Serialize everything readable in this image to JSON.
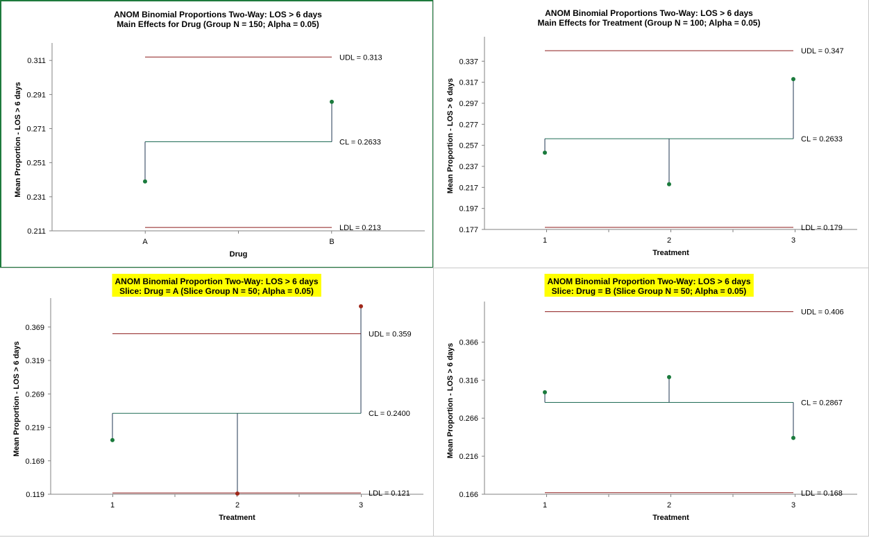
{
  "colors": {
    "limit_line": "#8b1a1a",
    "center_line": "#1e6b55",
    "drop_line": "#1f3550",
    "point_in": "#1a7a3c",
    "point_out": "#a0281a",
    "highlight": "#ffff00",
    "axis": "#808080"
  },
  "chart_data": [
    {
      "type": "anom",
      "title": "ANOM Binomial Proportions Two-Way: LOS > 6 days",
      "subtitle": "Main Effects for Drug (Group N = 150; Alpha = 0.05)",
      "highlight_title": false,
      "xlabel": "Drug",
      "ylabel": "Mean Proportion - LOS > 6 days",
      "categories": [
        "A",
        "B"
      ],
      "values": [
        0.24,
        0.2867
      ],
      "ylim": [
        0.211,
        0.318
      ],
      "yticks": [
        "0.211",
        "0.231",
        "0.251",
        "0.271",
        "0.291",
        "0.311"
      ],
      "udl": 0.313,
      "udl_label": "UDL = 0.313",
      "cl": 0.2633,
      "cl_label": "CL = 0.2633",
      "ldl": 0.213,
      "ldl_label": "LDL = 0.213"
    },
    {
      "type": "anom",
      "title": "ANOM Binomial Proportions Two-Way: LOS > 6 days",
      "subtitle": "Main Effects for Treatment (Group N = 100; Alpha = 0.05)",
      "highlight_title": false,
      "xlabel": "Treatment",
      "ylabel": "Mean Proportion - LOS > 6 days",
      "categories": [
        "1",
        "2",
        "3"
      ],
      "values": [
        0.25,
        0.22,
        0.32
      ],
      "ylim": [
        0.177,
        0.355
      ],
      "yticks": [
        "0.177",
        "0.197",
        "0.217",
        "0.237",
        "0.257",
        "0.277",
        "0.297",
        "0.317",
        "0.337"
      ],
      "udl": 0.347,
      "udl_label": "UDL = 0.347",
      "cl": 0.2633,
      "cl_label": "CL = 0.2633",
      "ldl": 0.179,
      "ldl_label": "LDL = 0.179"
    },
    {
      "type": "anom",
      "title": "ANOM Binomial Proportion Two-Way: LOS > 6 days",
      "subtitle": "Slice: Drug = A (Slice Group N = 50; Alpha = 0.05)",
      "highlight_title": true,
      "xlabel": "Treatment",
      "ylabel": "Mean Proportion - LOS > 6 days",
      "categories": [
        "1",
        "2",
        "3"
      ],
      "values": [
        0.2,
        0.12,
        0.4
      ],
      "ylim": [
        0.119,
        0.404
      ],
      "yticks": [
        "0.119",
        "0.169",
        "0.219",
        "0.269",
        "0.319",
        "0.369"
      ],
      "udl": 0.359,
      "udl_label": "UDL = 0.359",
      "cl": 0.24,
      "cl_label": "CL = 0.2400",
      "ldl": 0.121,
      "ldl_label": "LDL = 0.121"
    },
    {
      "type": "anom",
      "title": "ANOM Binomial Proportion Two-Way: LOS > 6 days",
      "subtitle": "Slice: Drug = B (Slice Group N = 50; Alpha = 0.05)",
      "highlight_title": true,
      "xlabel": "Treatment",
      "ylabel": "Mean Proportion - LOS > 6 days",
      "categories": [
        "1",
        "2",
        "3"
      ],
      "values": [
        0.3,
        0.32,
        0.24
      ],
      "ylim": [
        0.166,
        0.412
      ],
      "yticks": [
        "0.166",
        "0.216",
        "0.266",
        "0.316",
        "0.366"
      ],
      "udl": 0.406,
      "udl_label": "UDL = 0.406",
      "cl": 0.2867,
      "cl_label": "CL = 0.2867",
      "ldl": 0.168,
      "ldl_label": "LDL = 0.168"
    }
  ]
}
